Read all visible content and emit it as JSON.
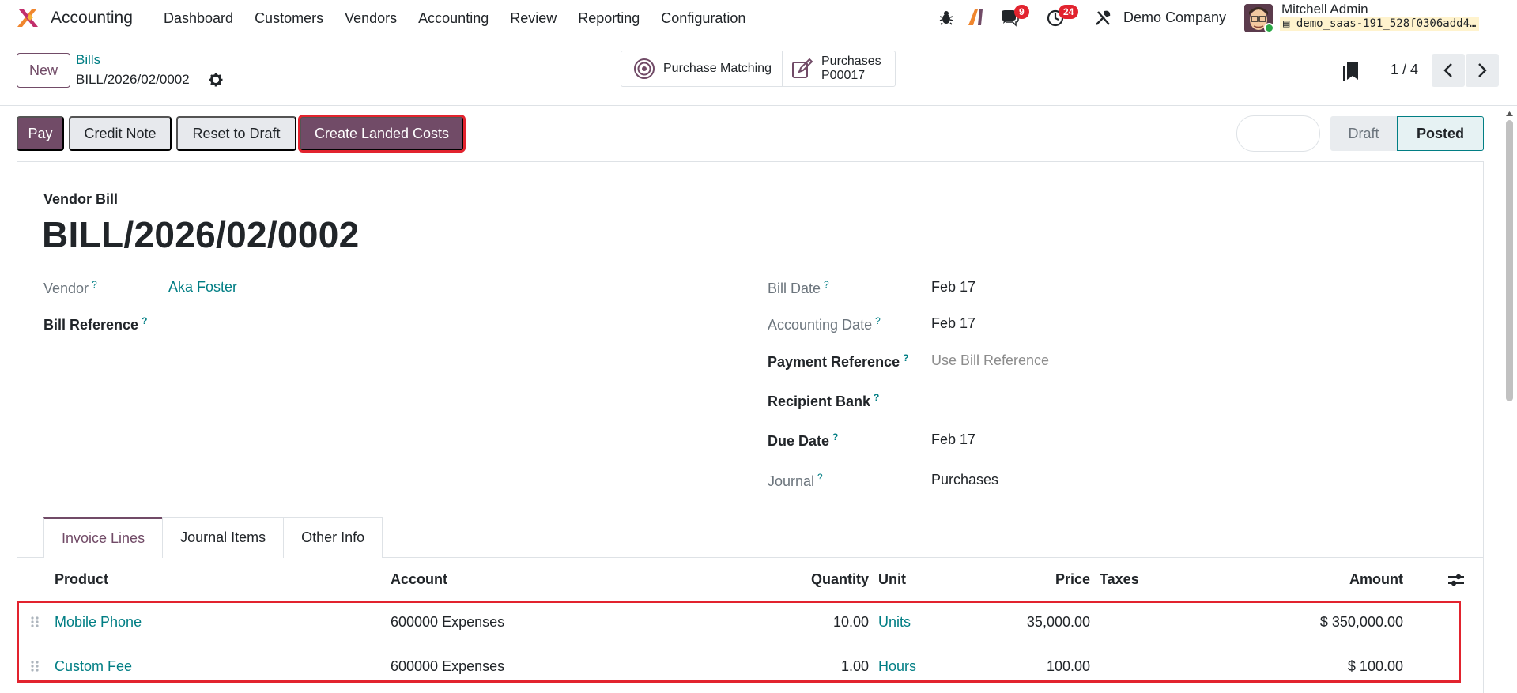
{
  "app": {
    "name": "Accounting"
  },
  "menu": [
    "Dashboard",
    "Customers",
    "Vendors",
    "Accounting",
    "Review",
    "Reporting",
    "Configuration"
  ],
  "systray": {
    "messages_badge": "9",
    "activities_badge": "24",
    "company": "Demo Company",
    "user_name": "Mitchell Admin",
    "database": "demo_saas-191_528f0306add4…"
  },
  "control_panel": {
    "new_label": "New",
    "breadcrumb_parent": "Bills",
    "record_name": "BILL/2026/02/0002",
    "smart_buttons": {
      "purchase_matching": "Purchase Matching",
      "purchases_title": "Purchases",
      "purchases_ref": "P00017"
    },
    "pager": "1 / 4"
  },
  "actions": {
    "pay": "Pay",
    "credit_note": "Credit Note",
    "reset_to_draft": "Reset to Draft",
    "create_landed_costs": "Create Landed Costs"
  },
  "status": {
    "stages": [
      "Draft",
      "Posted"
    ],
    "current": "Posted"
  },
  "form": {
    "type_label": "Vendor Bill",
    "title": "BILL/2026/02/0002",
    "vendor_label": "Vendor",
    "vendor_value": "Aka Foster",
    "bill_reference_label": "Bill Reference",
    "bill_date_label": "Bill Date",
    "bill_date_value": "Feb 17",
    "accounting_date_label": "Accounting Date",
    "accounting_date_value": "Feb 17",
    "payment_reference_label": "Payment Reference",
    "payment_reference_placeholder": "Use Bill Reference",
    "recipient_bank_label": "Recipient Bank",
    "due_date_label": "Due Date",
    "due_date_value": "Feb 17",
    "journal_label": "Journal",
    "journal_value": "Purchases",
    "help_mark": "?"
  },
  "tabs": [
    "Invoice Lines",
    "Journal Items",
    "Other Info"
  ],
  "lines": {
    "headers": {
      "product": "Product",
      "account": "Account",
      "quantity": "Quantity",
      "unit": "Unit",
      "price": "Price",
      "taxes": "Taxes",
      "amount": "Amount"
    },
    "rows": [
      {
        "product": "Mobile Phone",
        "account": "600000 Expenses",
        "quantity": "10.00",
        "unit": "Units",
        "price": "35,000.00",
        "taxes": "",
        "amount": "$ 350,000.00"
      },
      {
        "product": "Custom Fee",
        "account": "600000 Expenses",
        "quantity": "1.00",
        "unit": "Hours",
        "price": "100.00",
        "taxes": "",
        "amount": "$ 100.00"
      }
    ]
  },
  "colors": {
    "brand": "#714b67",
    "link": "#017e84",
    "highlight": "#e2232e"
  }
}
